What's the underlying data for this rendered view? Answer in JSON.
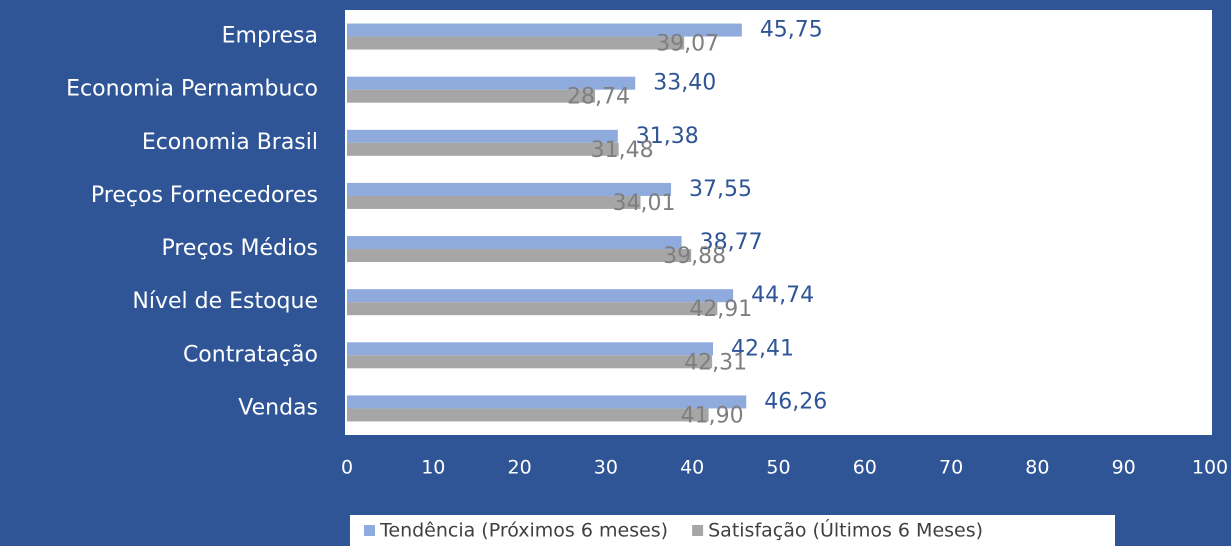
{
  "chart_data": {
    "type": "bar",
    "orientation": "horizontal",
    "categories": [
      "Empresa",
      "Economia Pernambuco",
      "Economia Brasil",
      "Preços Fornecedores",
      "Preços Médios",
      "Nível de Estoque",
      "Contratação",
      "Vendas"
    ],
    "series": [
      {
        "name": "Tendência (Próximos 6 meses)",
        "color": "#8faadc",
        "label_color": "#2f5597",
        "values": [
          45.75,
          33.4,
          31.38,
          37.55,
          38.77,
          44.74,
          42.41,
          46.26
        ],
        "value_labels": [
          "45,75",
          "33,40",
          "31,38",
          "37,55",
          "38,77",
          "44,74",
          "42,41",
          "46,26"
        ]
      },
      {
        "name": "Satisfação (Últimos 6 Meses)",
        "color": "#a6a6a6",
        "label_color": "#7f7f7f",
        "values": [
          39.07,
          28.74,
          31.48,
          34.01,
          39.88,
          42.91,
          42.31,
          41.9
        ],
        "value_labels": [
          "39,07",
          "28,74",
          "31,48",
          "34,01",
          "39,88",
          "42,91",
          "42,31",
          "41,90"
        ]
      }
    ],
    "xlim": [
      0,
      100
    ],
    "xticks": [
      0,
      10,
      20,
      30,
      40,
      50,
      60,
      70,
      80,
      90,
      100
    ],
    "grid": false,
    "legend": "bottom"
  }
}
